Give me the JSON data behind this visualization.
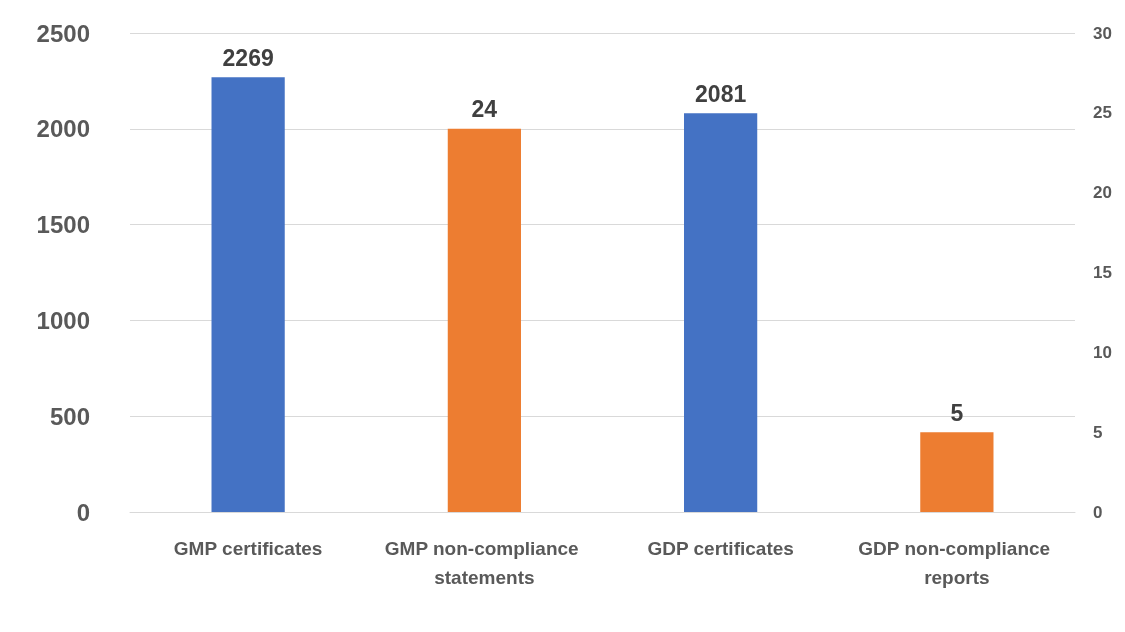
{
  "chart_data": {
    "type": "bar",
    "categories": [
      "GMP certificates",
      "GMP non-compliance statements",
      "GDP certificates",
      "GDP non-compliance reports"
    ],
    "series": [
      {
        "color": "#4472c4",
        "values": [
          2269,
          null,
          2081,
          null
        ]
      },
      {
        "color": "#ed7d31",
        "axis": "y2",
        "values": [
          null,
          24,
          null,
          5
        ]
      }
    ],
    "ylim": [
      0,
      2500
    ],
    "yticks": [
      0,
      500,
      1000,
      1500,
      2000,
      2500
    ],
    "y2lim": [
      0,
      30
    ],
    "y2ticks": [
      0,
      5,
      10,
      15,
      20,
      25,
      30
    ],
    "grid": "y",
    "data_labels": true
  }
}
